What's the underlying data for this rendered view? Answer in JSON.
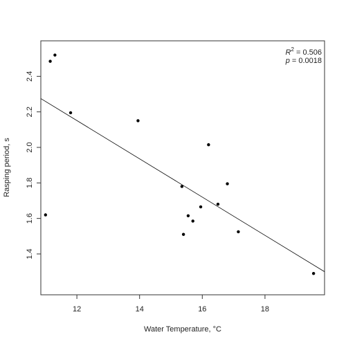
{
  "chart_data": {
    "type": "scatter",
    "xlabel": "Water Temperature, °C",
    "ylabel": "Rasping period, s",
    "xlim": [
      10.85,
      19.9
    ],
    "ylim": [
      1.17,
      2.6
    ],
    "x_ticks": [
      12,
      14,
      16,
      18
    ],
    "y_ticks": [
      1.4,
      1.6,
      1.8,
      2.0,
      2.2,
      2.4
    ],
    "x_tick_labels": [
      "12",
      "14",
      "16",
      "18"
    ],
    "y_tick_labels": [
      "1.4",
      "1.6",
      "1.8",
      "2.0",
      "2.2",
      "2.4"
    ],
    "points": [
      {
        "x": 11.15,
        "y": 2.485
      },
      {
        "x": 11.3,
        "y": 2.52
      },
      {
        "x": 11.8,
        "y": 2.195
      },
      {
        "x": 13.95,
        "y": 2.15
      },
      {
        "x": 11.0,
        "y": 1.62
      },
      {
        "x": 15.35,
        "y": 1.78
      },
      {
        "x": 15.4,
        "y": 1.51
      },
      {
        "x": 15.55,
        "y": 1.615
      },
      {
        "x": 15.7,
        "y": 1.585
      },
      {
        "x": 15.95,
        "y": 1.665
      },
      {
        "x": 16.2,
        "y": 2.015
      },
      {
        "x": 16.5,
        "y": 1.68
      },
      {
        "x": 16.8,
        "y": 1.795
      },
      {
        "x": 17.15,
        "y": 1.525
      },
      {
        "x": 19.55,
        "y": 1.29
      }
    ],
    "fit_line": {
      "x": [
        10.85,
        19.9
      ],
      "y": [
        2.275,
        1.3
      ]
    },
    "grid": false,
    "annotation": {
      "r_symbol": "R",
      "r_exponent": "2",
      "r_value": " = 0.506",
      "p_symbol": "p",
      "p_value": " = 0.0018",
      "placement": "top-right"
    },
    "point_color": "#000000",
    "line_color": "#000000"
  }
}
